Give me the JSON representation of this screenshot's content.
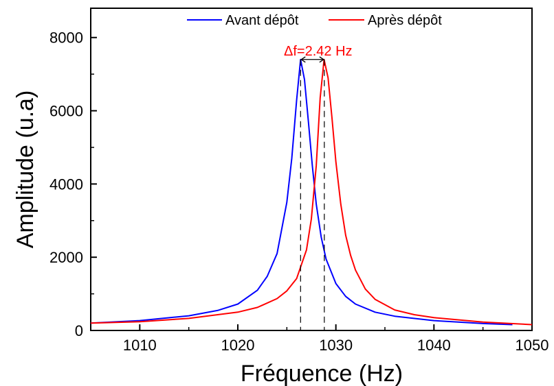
{
  "chart_data": {
    "type": "line",
    "xlabel": "Fréquence (Hz)",
    "ylabel": "Amplitude (u.a)",
    "xlim": [
      1005,
      1050
    ],
    "ylim": [
      0,
      8800
    ],
    "x_ticks": [
      1010,
      1020,
      1030,
      1040,
      1050
    ],
    "y_ticks": [
      0,
      2000,
      4000,
      6000,
      8000
    ],
    "grid": false,
    "legend_position": "top-center",
    "series": [
      {
        "name": "Avant dépôt",
        "color": "#0000ff",
        "x": [
          1005,
          1010,
          1015,
          1018,
          1020,
          1022,
          1023,
          1024,
          1025,
          1025.5,
          1026,
          1026.4,
          1026.8,
          1027.2,
          1027.6,
          1028,
          1028.5,
          1029,
          1030,
          1031,
          1032,
          1034,
          1036,
          1040,
          1045,
          1048
        ],
        "values": [
          200,
          270,
          400,
          550,
          720,
          1100,
          1480,
          2100,
          3500,
          4700,
          6300,
          7400,
          6850,
          5700,
          4500,
          3450,
          2550,
          1950,
          1280,
          930,
          720,
          500,
          390,
          270,
          190,
          160
        ]
      },
      {
        "name": "Après dépôt",
        "color": "#ff0000",
        "x": [
          1005,
          1010,
          1015,
          1020,
          1022,
          1024,
          1025,
          1026,
          1027,
          1027.5,
          1028,
          1028.4,
          1028.8,
          1029.2,
          1029.6,
          1030,
          1030.5,
          1031,
          1031.5,
          1032,
          1033,
          1034,
          1036,
          1038,
          1040,
          1045,
          1050
        ],
        "values": [
          200,
          240,
          330,
          500,
          630,
          870,
          1080,
          1420,
          2200,
          3050,
          4500,
          6350,
          7400,
          6900,
          5800,
          4600,
          3450,
          2600,
          2050,
          1650,
          1130,
          850,
          560,
          430,
          350,
          230,
          160
        ]
      }
    ],
    "annotations": [
      {
        "text": "Δf=2.42 Hz",
        "color": "#ff0000"
      }
    ],
    "peak_markers": {
      "x": [
        1026.4,
        1028.82
      ],
      "y": 7400
    }
  }
}
